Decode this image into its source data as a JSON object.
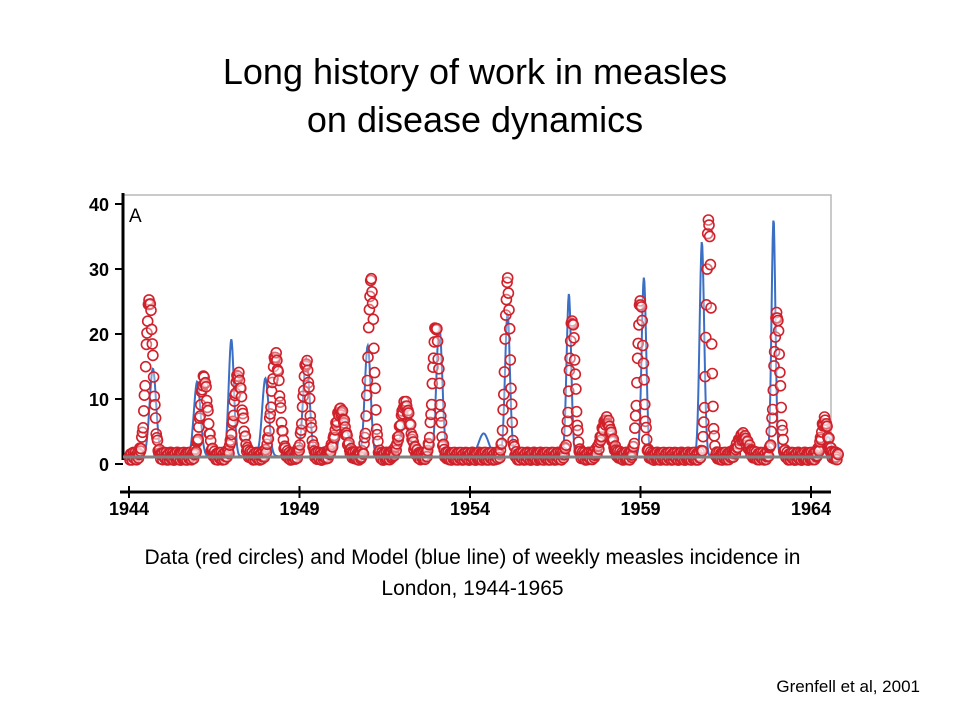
{
  "slide": {
    "title_lines": [
      "Long history of work in measles",
      "on disease dynamics"
    ],
    "caption_lines": [
      "Data (red circles) and Model (blue line) of weekly measles incidence in",
      "London, 1944-1965"
    ],
    "citation": "Grenfell et al, 2001"
  },
  "chart_data": {
    "type": "line",
    "title": "",
    "panel_label": "A",
    "xlabel": "",
    "ylabel": "",
    "xlim": [
      1944,
      1964.8
    ],
    "ylim": [
      0,
      40
    ],
    "x_ticks": [
      1944,
      1949,
      1954,
      1959,
      1964
    ],
    "x_tick_labels": [
      "1944",
      "1949",
      "1954",
      "1959",
      "1964"
    ],
    "y_ticks": [
      0,
      10,
      20,
      30,
      40
    ],
    "y_tick_labels": [
      "0",
      "10",
      "20",
      "30",
      "40"
    ],
    "grid": false,
    "baseline_color": "#808080",
    "series": [
      {
        "style": "circles",
        "color": "#d0202a",
        "epidemics": [
          {
            "peak_year": 1944.6,
            "peak_value": 24.0,
            "width": 0.22
          },
          {
            "peak_year": 1946.2,
            "peak_value": 12.0,
            "width": 0.22
          },
          {
            "peak_year": 1947.2,
            "peak_value": 12.5,
            "width": 0.25
          },
          {
            "peak_year": 1948.3,
            "peak_value": 15.5,
            "width": 0.25
          },
          {
            "peak_year": 1949.2,
            "peak_value": 14.5,
            "width": 0.2
          },
          {
            "peak_year": 1950.2,
            "peak_value": 7.0,
            "width": 0.3
          },
          {
            "peak_year": 1951.1,
            "peak_value": 27.0,
            "width": 0.18
          },
          {
            "peak_year": 1952.1,
            "peak_value": 8.0,
            "width": 0.3
          },
          {
            "peak_year": 1953.0,
            "peak_value": 20.0,
            "width": 0.2
          },
          {
            "peak_year": 1955.1,
            "peak_value": 27.0,
            "width": 0.16
          },
          {
            "peak_year": 1957.0,
            "peak_value": 21.0,
            "width": 0.18
          },
          {
            "peak_year": 1958.0,
            "peak_value": 5.5,
            "width": 0.3
          },
          {
            "peak_year": 1959.0,
            "peak_value": 24.0,
            "width": 0.18
          },
          {
            "peak_year": 1961.0,
            "peak_value": 36.5,
            "width": 0.15
          },
          {
            "peak_year": 1962.0,
            "peak_value": 3.0,
            "width": 0.3
          },
          {
            "peak_year": 1963.0,
            "peak_value": 22.0,
            "width": 0.18
          },
          {
            "peak_year": 1964.4,
            "peak_value": 5.5,
            "width": 0.2
          }
        ]
      },
      {
        "style": "line",
        "color": "#3a6fc4",
        "epidemics": [
          {
            "peak_year": 1944.7,
            "peak_value": 13.5,
            "width": 0.2
          },
          {
            "peak_year": 1946.0,
            "peak_value": 11.5,
            "width": 0.2
          },
          {
            "peak_year": 1947.0,
            "peak_value": 18.0,
            "width": 0.16
          },
          {
            "peak_year": 1948.0,
            "peak_value": 12.0,
            "width": 0.2
          },
          {
            "peak_year": 1949.2,
            "peak_value": 15.0,
            "width": 0.2
          },
          {
            "peak_year": 1950.3,
            "peak_value": 6.0,
            "width": 0.25
          },
          {
            "peak_year": 1951.0,
            "peak_value": 17.0,
            "width": 0.18
          },
          {
            "peak_year": 1952.1,
            "peak_value": 5.0,
            "width": 0.3
          },
          {
            "peak_year": 1953.1,
            "peak_value": 20.0,
            "width": 0.18
          },
          {
            "peak_year": 1954.4,
            "peak_value": 3.5,
            "width": 0.3
          },
          {
            "peak_year": 1955.1,
            "peak_value": 22.0,
            "width": 0.15
          },
          {
            "peak_year": 1956.9,
            "peak_value": 25.0,
            "width": 0.14
          },
          {
            "peak_year": 1958.1,
            "peak_value": 4.5,
            "width": 0.3
          },
          {
            "peak_year": 1959.1,
            "peak_value": 27.5,
            "width": 0.14
          },
          {
            "peak_year": 1960.8,
            "peak_value": 33.0,
            "width": 0.14
          },
          {
            "peak_year": 1962.1,
            "peak_value": 2.5,
            "width": 0.3
          },
          {
            "peak_year": 1962.9,
            "peak_value": 36.5,
            "width": 0.12
          },
          {
            "peak_year": 1964.5,
            "peak_value": 3.0,
            "width": 0.2
          }
        ]
      }
    ]
  }
}
